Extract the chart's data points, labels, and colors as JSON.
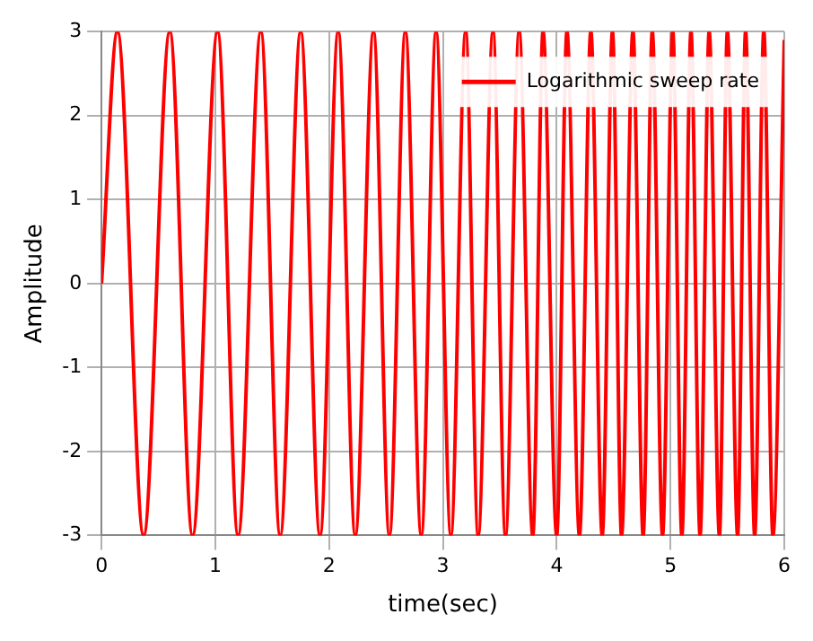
{
  "chart_data": {
    "type": "line",
    "xlabel": "time(sec)",
    "ylabel": "Amplitude",
    "xlim": [
      0,
      6
    ],
    "ylim": [
      -3,
      3
    ],
    "xticks": [
      0,
      1,
      2,
      3,
      4,
      5,
      6
    ],
    "yticks": [
      -3,
      -2,
      -1,
      0,
      1,
      2,
      3
    ],
    "grid": true,
    "legend": "top right",
    "line_style": "solid",
    "series": [
      {
        "name": "Logarithmic sweep rate",
        "color": "#ff0000",
        "x": [
          0,
          0.14,
          0.37,
          0.6,
          0.8,
          1.02,
          1.2,
          1.4,
          1.57,
          1.75,
          1.92,
          2.08,
          2.23,
          2.39,
          2.53,
          2.67,
          2.81,
          2.94,
          3.07,
          3.2,
          3.31,
          3.44,
          3.55,
          3.67,
          3.79,
          3.88,
          4,
          4.09,
          4.2,
          4.3,
          4.4,
          4.49,
          4.57,
          4.67,
          4.76,
          4.84,
          4.93,
          5.02,
          5.1,
          5.18,
          5.26,
          5.34,
          5.43,
          5.5,
          5.59,
          5.66,
          5.74,
          5.82,
          5.9,
          6
        ],
        "values": [
          0,
          3,
          -3,
          3,
          -3,
          3,
          -3,
          3,
          -3,
          3,
          -3,
          3,
          -3,
          3,
          -3,
          3,
          -3,
          3,
          -3,
          3,
          -3,
          3,
          -3,
          3,
          -3,
          3,
          -3,
          3,
          -3,
          3,
          -3,
          3,
          -3,
          3,
          -3,
          3,
          -3,
          3,
          -3,
          3,
          -3,
          3,
          -3,
          3,
          -3,
          3,
          -3,
          3,
          -3,
          2.9
        ]
      }
    ]
  }
}
